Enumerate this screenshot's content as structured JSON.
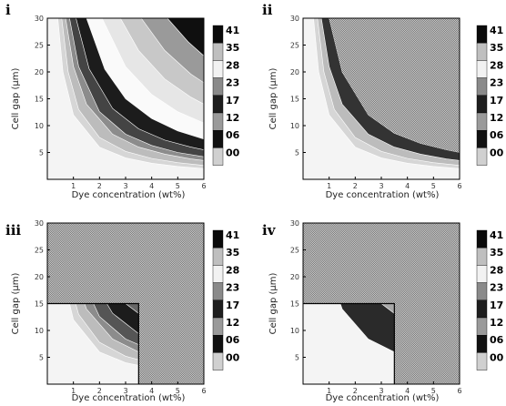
{
  "chart_data": [
    {
      "panel_label": "i",
      "type": "heatmap",
      "subtype": "filled-contour",
      "xlabel": "Dye concentration (wt%)",
      "ylabel": "Cell gap (μm)",
      "xlim": [
        0,
        6
      ],
      "ylim": [
        0,
        30
      ],
      "xticks": [
        "1",
        "2",
        "3",
        "4",
        "5",
        "6"
      ],
      "yticks": [
        "5",
        "10",
        "15",
        "20",
        "25",
        "30"
      ],
      "colorbar_ticks": [
        "41",
        "35",
        "28",
        "23",
        "17",
        "12",
        "06",
        "00"
      ],
      "feasible_region": null,
      "contours": [
        {
          "level": 0.5,
          "x": [
            0.4,
            0.6,
            1.0,
            2.0,
            3.0,
            4.0,
            5.0,
            6.0
          ],
          "y": [
            30.0,
            20.0,
            12.0,
            6.0,
            4.0,
            3.0,
            2.4,
            2.0
          ],
          "fill_above": "#d6d6d6"
        },
        {
          "level": 0.7,
          "x": [
            0.55,
            0.8,
            1.2,
            2.0,
            3.0,
            4.0,
            5.0,
            6.0
          ],
          "y": [
            30.0,
            20.0,
            13.0,
            7.8,
            5.2,
            3.9,
            3.1,
            2.6
          ],
          "fill_above": "#bcbcbc"
        },
        {
          "level": 0.9,
          "x": [
            0.7,
            1.0,
            1.5,
            2.5,
            3.5,
            4.5,
            5.5,
            6.0
          ],
          "y": [
            30.0,
            21.0,
            14.0,
            8.4,
            6.0,
            4.7,
            3.8,
            3.5
          ],
          "fill_above": "#8c8c8c"
        },
        {
          "level": 1.1,
          "x": [
            0.85,
            1.2,
            2.0,
            3.0,
            4.0,
            5.0,
            6.0
          ],
          "y": [
            30.0,
            21.0,
            12.6,
            8.4,
            6.3,
            5.0,
            4.2
          ],
          "fill_above": "#444444"
        },
        {
          "level": 1.4,
          "x": [
            1.1,
            1.6,
            2.5,
            3.5,
            4.5,
            5.5,
            6.0
          ],
          "y": [
            30.0,
            20.6,
            13.2,
            9.4,
            7.3,
            6.0,
            5.5
          ],
          "fill_above": "#1c1c1c"
        },
        {
          "level": 1.9,
          "x": [
            1.5,
            2.2,
            3.0,
            4.0,
            5.0,
            6.0
          ],
          "y": [
            30.0,
            20.5,
            15.0,
            11.3,
            9.0,
            7.5
          ],
          "fill_above": "#fafafa"
        },
        {
          "level": 2.5,
          "x": [
            2.1,
            3.0,
            4.0,
            5.0,
            6.0
          ],
          "y": [
            30.0,
            21.0,
            15.8,
            12.6,
            10.5
          ],
          "fill_above": "#e6e6e6"
        },
        {
          "level": 3.2,
          "x": [
            2.8,
            3.5,
            4.5,
            5.5,
            6.0
          ],
          "y": [
            30.0,
            24.0,
            18.7,
            15.3,
            14.0
          ],
          "fill_above": "#c8c8c8"
        },
        {
          "level": 4.2,
          "x": [
            3.6,
            4.5,
            5.5,
            6.0
          ],
          "y": [
            30.0,
            24.0,
            19.6,
            18.0
          ],
          "fill_above": "#9a9a9a"
        },
        {
          "level": 5.4,
          "x": [
            4.6,
            5.4,
            6.0
          ],
          "y": [
            30.0,
            25.6,
            23.0
          ],
          "fill_above": "#0f0f0f"
        }
      ]
    },
    {
      "panel_label": "ii",
      "type": "heatmap",
      "subtype": "filled-contour",
      "xlabel": "Dye concentration (wt%)",
      "ylabel": "Cell gap (μm)",
      "xlim": [
        0,
        6
      ],
      "ylim": [
        0,
        30
      ],
      "xticks": [
        "1",
        "2",
        "3",
        "4",
        "5",
        "6"
      ],
      "yticks": [
        "5",
        "10",
        "15",
        "20",
        "25",
        "30"
      ],
      "colorbar_ticks": [
        "41",
        "35",
        "28",
        "23",
        "17",
        "12",
        "06",
        "00"
      ],
      "feasible_region": null,
      "contours": [
        {
          "level": 0.5,
          "x": [
            0.4,
            0.6,
            1.0,
            2.0,
            3.0,
            4.0,
            5.0,
            6.0
          ],
          "y": [
            30.0,
            20.0,
            12.0,
            6.0,
            4.0,
            3.0,
            2.4,
            2.0
          ],
          "fill_above": "#d6d6d6"
        },
        {
          "level": 0.7,
          "x": [
            0.55,
            0.8,
            1.2,
            2.0,
            3.0,
            4.0,
            5.0,
            6.0
          ],
          "y": [
            30.0,
            20.0,
            13.0,
            7.8,
            5.2,
            3.9,
            3.1,
            2.6
          ],
          "fill_above": "#bcbcbc"
        },
        {
          "level": 0.9,
          "x": [
            0.7,
            1.0,
            1.5,
            2.5,
            3.5,
            4.5,
            5.5,
            6.0
          ],
          "y": [
            30.0,
            21.0,
            14.0,
            8.4,
            6.0,
            4.7,
            3.8,
            3.5
          ],
          "fill_above": "#333333"
        },
        {
          "level": 1.3,
          "x": [
            1.0,
            1.5,
            2.5,
            3.5,
            4.5,
            5.5,
            6.0
          ],
          "y": [
            30.0,
            20.0,
            12.0,
            8.6,
            6.7,
            5.5,
            5.0
          ],
          "fill_above": "#a8a8a8"
        }
      ]
    },
    {
      "panel_label": "iii",
      "type": "heatmap",
      "subtype": "filled-contour",
      "xlabel": "Dye concentration (wt%)",
      "ylabel": "Cell gap (μm)",
      "xlim": [
        0,
        6
      ],
      "ylim": [
        0,
        30
      ],
      "xticks": [
        "1",
        "2",
        "3",
        "4",
        "5",
        "6"
      ],
      "yticks": [
        "5",
        "10",
        "15",
        "20",
        "25",
        "30"
      ],
      "colorbar_ticks": [
        "41",
        "35",
        "28",
        "23",
        "17",
        "12",
        "06",
        "00"
      ],
      "feasible_region": {
        "x_max": 3.5,
        "y_max": 15
      },
      "contours": [
        {
          "level": 0.5,
          "x": [
            0.4,
            0.6,
            1.0,
            2.0,
            3.0,
            4.0,
            5.0,
            6.0
          ],
          "y": [
            30.0,
            20.0,
            12.0,
            6.0,
            4.0,
            3.0,
            2.4,
            2.0
          ],
          "fill_above": "#d6d6d6"
        },
        {
          "level": 0.7,
          "x": [
            0.55,
            0.8,
            1.2,
            2.0,
            3.0,
            4.0,
            5.0,
            6.0
          ],
          "y": [
            30.0,
            20.0,
            13.0,
            7.8,
            5.2,
            3.9,
            3.1,
            2.6
          ],
          "fill_above": "#bcbcbc"
        },
        {
          "level": 0.9,
          "x": [
            0.7,
            1.0,
            1.5,
            2.5,
            3.5,
            4.5,
            5.5,
            6.0
          ],
          "y": [
            30.0,
            21.0,
            14.0,
            8.4,
            6.0,
            4.7,
            3.8,
            3.5
          ],
          "fill_above": "#8c8c8c"
        },
        {
          "level": 1.1,
          "x": [
            0.85,
            1.2,
            2.0,
            3.0,
            4.0,
            5.0,
            6.0
          ],
          "y": [
            30.0,
            21.0,
            12.6,
            8.4,
            6.3,
            5.0,
            4.2
          ],
          "fill_above": "#555555"
        },
        {
          "level": 1.4,
          "x": [
            1.1,
            1.6,
            2.5,
            3.5,
            4.5,
            5.5,
            6.0
          ],
          "y": [
            30.0,
            20.6,
            13.2,
            9.4,
            7.3,
            6.0,
            5.5
          ],
          "fill_above": "#1c1c1c"
        },
        {
          "level": 1.9,
          "x": [
            1.5,
            2.2,
            3.0,
            4.0,
            5.0,
            6.0
          ],
          "y": [
            30.0,
            20.5,
            15.0,
            11.3,
            9.0,
            7.5
          ],
          "fill_above": "#666666"
        }
      ]
    },
    {
      "panel_label": "iv",
      "type": "heatmap",
      "subtype": "filled-contour",
      "xlabel": "Dye concentration (wt%)",
      "ylabel": "Cell gap (μm)",
      "xlim": [
        0,
        6
      ],
      "ylim": [
        0,
        30
      ],
      "xticks": [
        "1",
        "2",
        "3",
        "4",
        "5",
        "6"
      ],
      "yticks": [
        "5",
        "10",
        "15",
        "20",
        "25",
        "30"
      ],
      "colorbar_ticks": [
        "41",
        "35",
        "28",
        "23",
        "17",
        "12",
        "06",
        "00"
      ],
      "feasible_region": {
        "x_max": 3.5,
        "y_max": 15
      },
      "contours": [
        {
          "level": 0.9,
          "x": [
            0.7,
            1.0,
            1.5,
            2.5,
            3.5,
            4.5,
            5.5,
            6.0
          ],
          "y": [
            30.0,
            21.0,
            14.0,
            8.4,
            6.0,
            4.7,
            3.8,
            3.5
          ],
          "fill_above": "#2a2a2a"
        },
        {
          "level": 1.8,
          "x": [
            1.5,
            2.0,
            3.0,
            4.0,
            5.0,
            6.0
          ],
          "y": [
            30.0,
            22.5,
            15.0,
            11.3,
            9.0,
            7.5
          ],
          "fill_above": "#a8a8a8"
        }
      ]
    }
  ],
  "colors": {
    "page_background": "#ffffff",
    "region_fill": "#a8a8a8",
    "frame": "#000000"
  },
  "colorbar_colors": [
    "#0a0a0a",
    "#bfbfbf",
    "#f2f2f2",
    "#8a8a8a",
    "#1e1e1e",
    "#9a9a9a",
    "#111111",
    "#d0d0d0"
  ]
}
